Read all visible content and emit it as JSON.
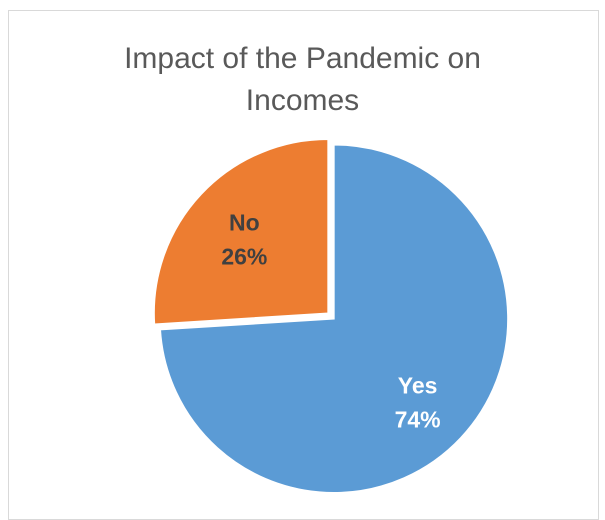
{
  "chart_data": {
    "type": "pie",
    "title_lines": [
      "Impact of the Pandemic on",
      "Incomes"
    ],
    "slices": [
      {
        "label": "Yes",
        "value": 74,
        "value_label": "74%",
        "color": "#5b9bd5",
        "label_color": "#ffffff"
      },
      {
        "label": "No",
        "value": 26,
        "value_label": "26%",
        "color": "#ed7d31",
        "label_color": "#404040"
      }
    ],
    "start_angle_deg": 0,
    "direction": "clockwise",
    "exploded": true,
    "legend": "none"
  }
}
